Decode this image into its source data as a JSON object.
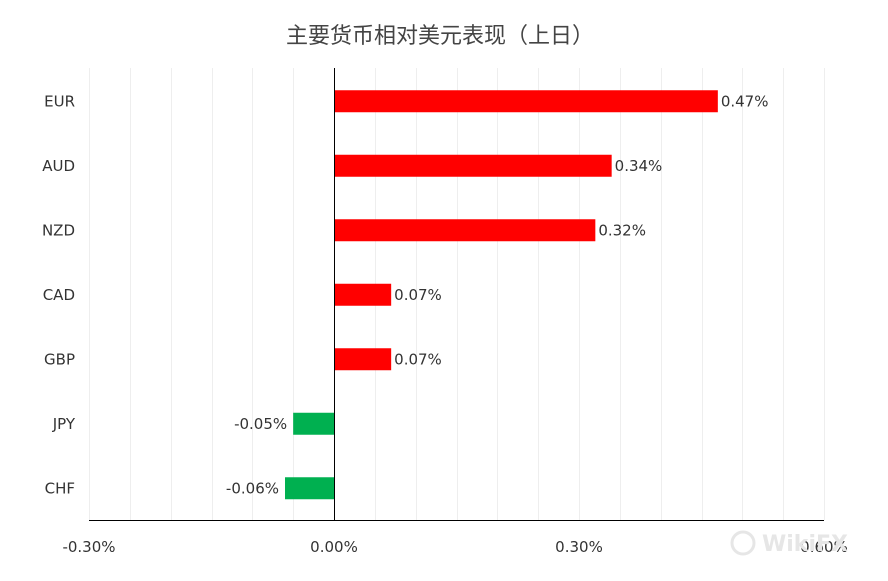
{
  "chart_data": {
    "type": "bar",
    "orientation": "horizontal",
    "title": "主要货币相对美元表现（上日）",
    "categories": [
      "EUR",
      "AUD",
      "NZD",
      "CAD",
      "GBP",
      "JPY",
      "CHF"
    ],
    "values": [
      0.47,
      0.34,
      0.32,
      0.07,
      0.07,
      -0.05,
      -0.06
    ],
    "data_labels": [
      "0.47%",
      "0.34%",
      "0.32%",
      "0.07%",
      "0.07%",
      "-0.05%",
      "-0.06%"
    ],
    "xlim": [
      -0.3,
      0.6
    ],
    "xticks": [
      -0.3,
      0.0,
      0.3,
      0.6
    ],
    "xtick_labels": [
      "-0.30%",
      "0.00%",
      "0.30%",
      "0.60%"
    ],
    "grid": true,
    "colors": {
      "positive": "#ff0000",
      "negative": "#00b050"
    }
  },
  "watermark": {
    "text": "WikiFX"
  }
}
